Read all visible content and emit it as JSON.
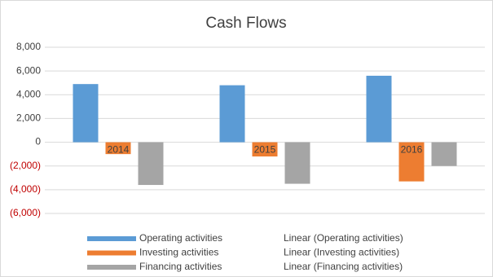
{
  "chart_data": {
    "type": "bar",
    "title": "Cash Flows",
    "categories": [
      "2014",
      "2015",
      "2016"
    ],
    "series": [
      {
        "name": "Operating activities",
        "color": "#5b9bd5",
        "values": [
          4900,
          4800,
          5600
        ]
      },
      {
        "name": "Investing activities",
        "color": "#ed7d31",
        "values": [
          -1000,
          -1200,
          -3300
        ]
      },
      {
        "name": "Financing activities",
        "color": "#a5a5a5",
        "values": [
          -3600,
          -3500,
          -2000
        ]
      }
    ],
    "trendlines": [
      "Linear (Operating activities)",
      "Linear (Investing activities)",
      "Linear (Financing activities)"
    ],
    "ylim": [
      -6000,
      8000
    ],
    "yticks": [
      {
        "value": -6000,
        "label": "(6,000)"
      },
      {
        "value": -4000,
        "label": "(4,000)"
      },
      {
        "value": -2000,
        "label": "(2,000)"
      },
      0,
      {
        "value": 2000,
        "label": "2,000"
      },
      {
        "value": 4000,
        "label": "4,000"
      },
      {
        "value": 6000,
        "label": "6,000"
      },
      {
        "value": 8000,
        "label": "8,000"
      }
    ],
    "negative_tick_color": "#c00000",
    "grid": true,
    "legend": "bottom"
  }
}
